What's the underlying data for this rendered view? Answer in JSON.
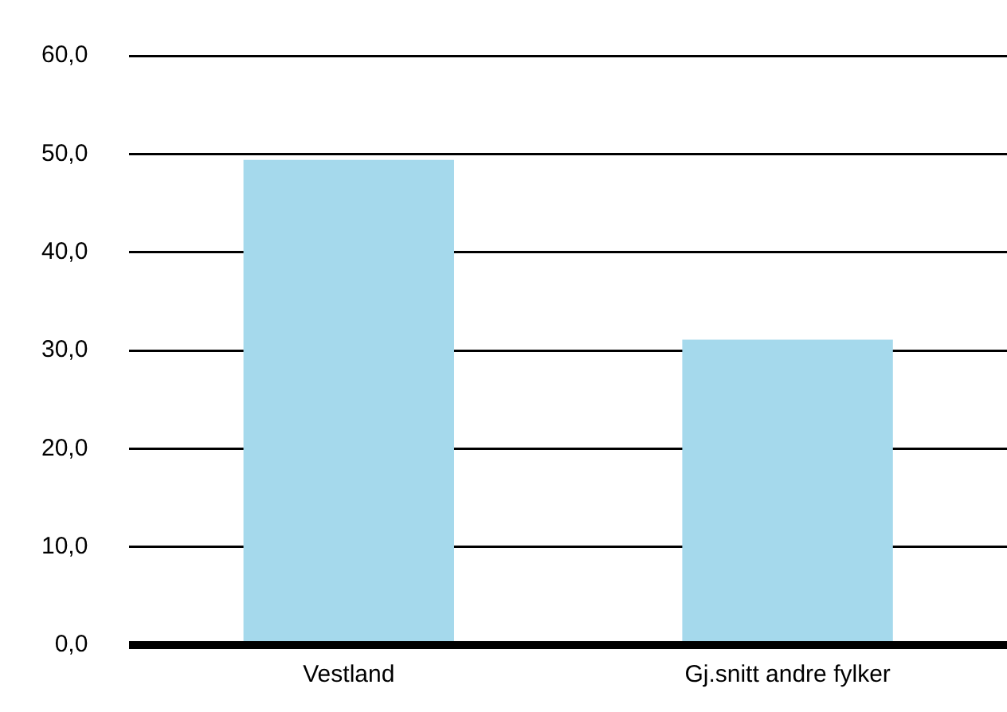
{
  "chart_data": {
    "type": "bar",
    "categories": [
      "Vestland",
      "Gj.snitt andre fylker"
    ],
    "values": [
      49.4,
      31.1
    ],
    "color": "#a5d9ec",
    "ylim": [
      0,
      60
    ],
    "yticks": [
      {
        "value": 0,
        "label": "0,0"
      },
      {
        "value": 10,
        "label": "10,0"
      },
      {
        "value": 20,
        "label": "20,0"
      },
      {
        "value": 30,
        "label": "30,0"
      },
      {
        "value": 40,
        "label": "40,0"
      },
      {
        "value": 50,
        "label": "50,0"
      },
      {
        "value": 60,
        "label": "60,0"
      }
    ],
    "grid": "y",
    "legend": false
  }
}
